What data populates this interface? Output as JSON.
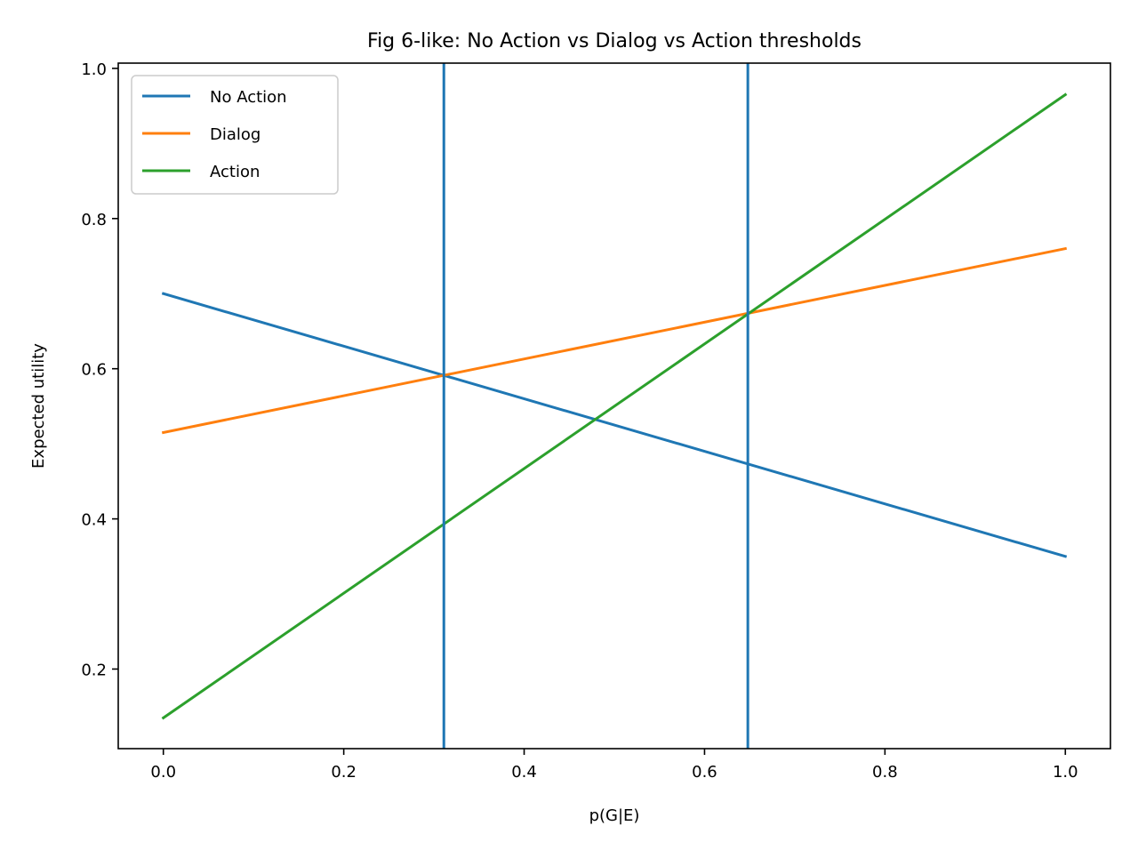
{
  "chart_data": {
    "type": "line",
    "title": "Fig 6-like: No Action vs Dialog vs Action thresholds",
    "xlabel": "p(G|E)",
    "ylabel": "Expected utility",
    "xlim": [
      -0.05,
      1.05
    ],
    "ylim": [
      0.094,
      1.007
    ],
    "xticks": [
      0.0,
      0.2,
      0.4,
      0.6,
      0.8,
      1.0
    ],
    "xtick_labels": [
      "0.0",
      "0.2",
      "0.4",
      "0.6",
      "0.8",
      "1.0"
    ],
    "yticks": [
      0.2,
      0.4,
      0.6,
      0.8,
      1.0
    ],
    "ytick_labels": [
      "0.2",
      "0.4",
      "0.6",
      "0.8",
      "1.0"
    ],
    "grid": false,
    "legend_position": "upper-left",
    "series": [
      {
        "name": "No Action",
        "color": "#1f77b4",
        "x": [
          0.0,
          1.0
        ],
        "y": [
          0.7,
          0.35
        ]
      },
      {
        "name": "Dialog",
        "color": "#ff7f0e",
        "x": [
          0.0,
          1.0
        ],
        "y": [
          0.515,
          0.76
        ]
      },
      {
        "name": "Action",
        "color": "#2ca02c",
        "x": [
          0.0,
          1.0
        ],
        "y": [
          0.135,
          0.965
        ]
      }
    ],
    "vertical_lines": [
      {
        "x": 0.311,
        "color": "#1f77b4"
      },
      {
        "x": 0.648,
        "color": "#1f77b4"
      }
    ]
  }
}
